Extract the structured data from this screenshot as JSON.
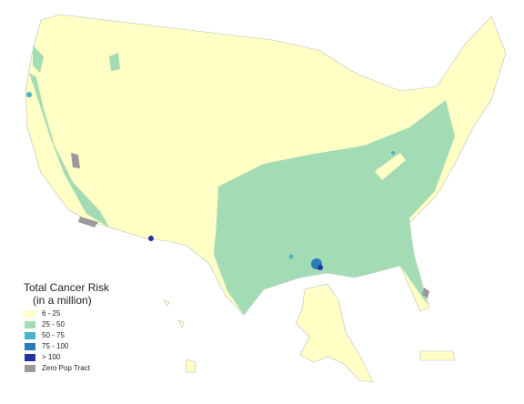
{
  "legend": {
    "title": "Total Cancer Risk",
    "subtitle": "(in a million)",
    "items": [
      {
        "label": "6 - 25",
        "color": "#ffffc6"
      },
      {
        "label": "25 - 50",
        "color": "#a3dcb4"
      },
      {
        "label": "50 - 75",
        "color": "#49b3c7"
      },
      {
        "label": "75 - 100",
        "color": "#2c7cb8"
      },
      {
        "label": "> 100",
        "color": "#24349a"
      },
      {
        "label": "Zero Pop Tract",
        "color": "#9a9a9a"
      }
    ]
  }
}
